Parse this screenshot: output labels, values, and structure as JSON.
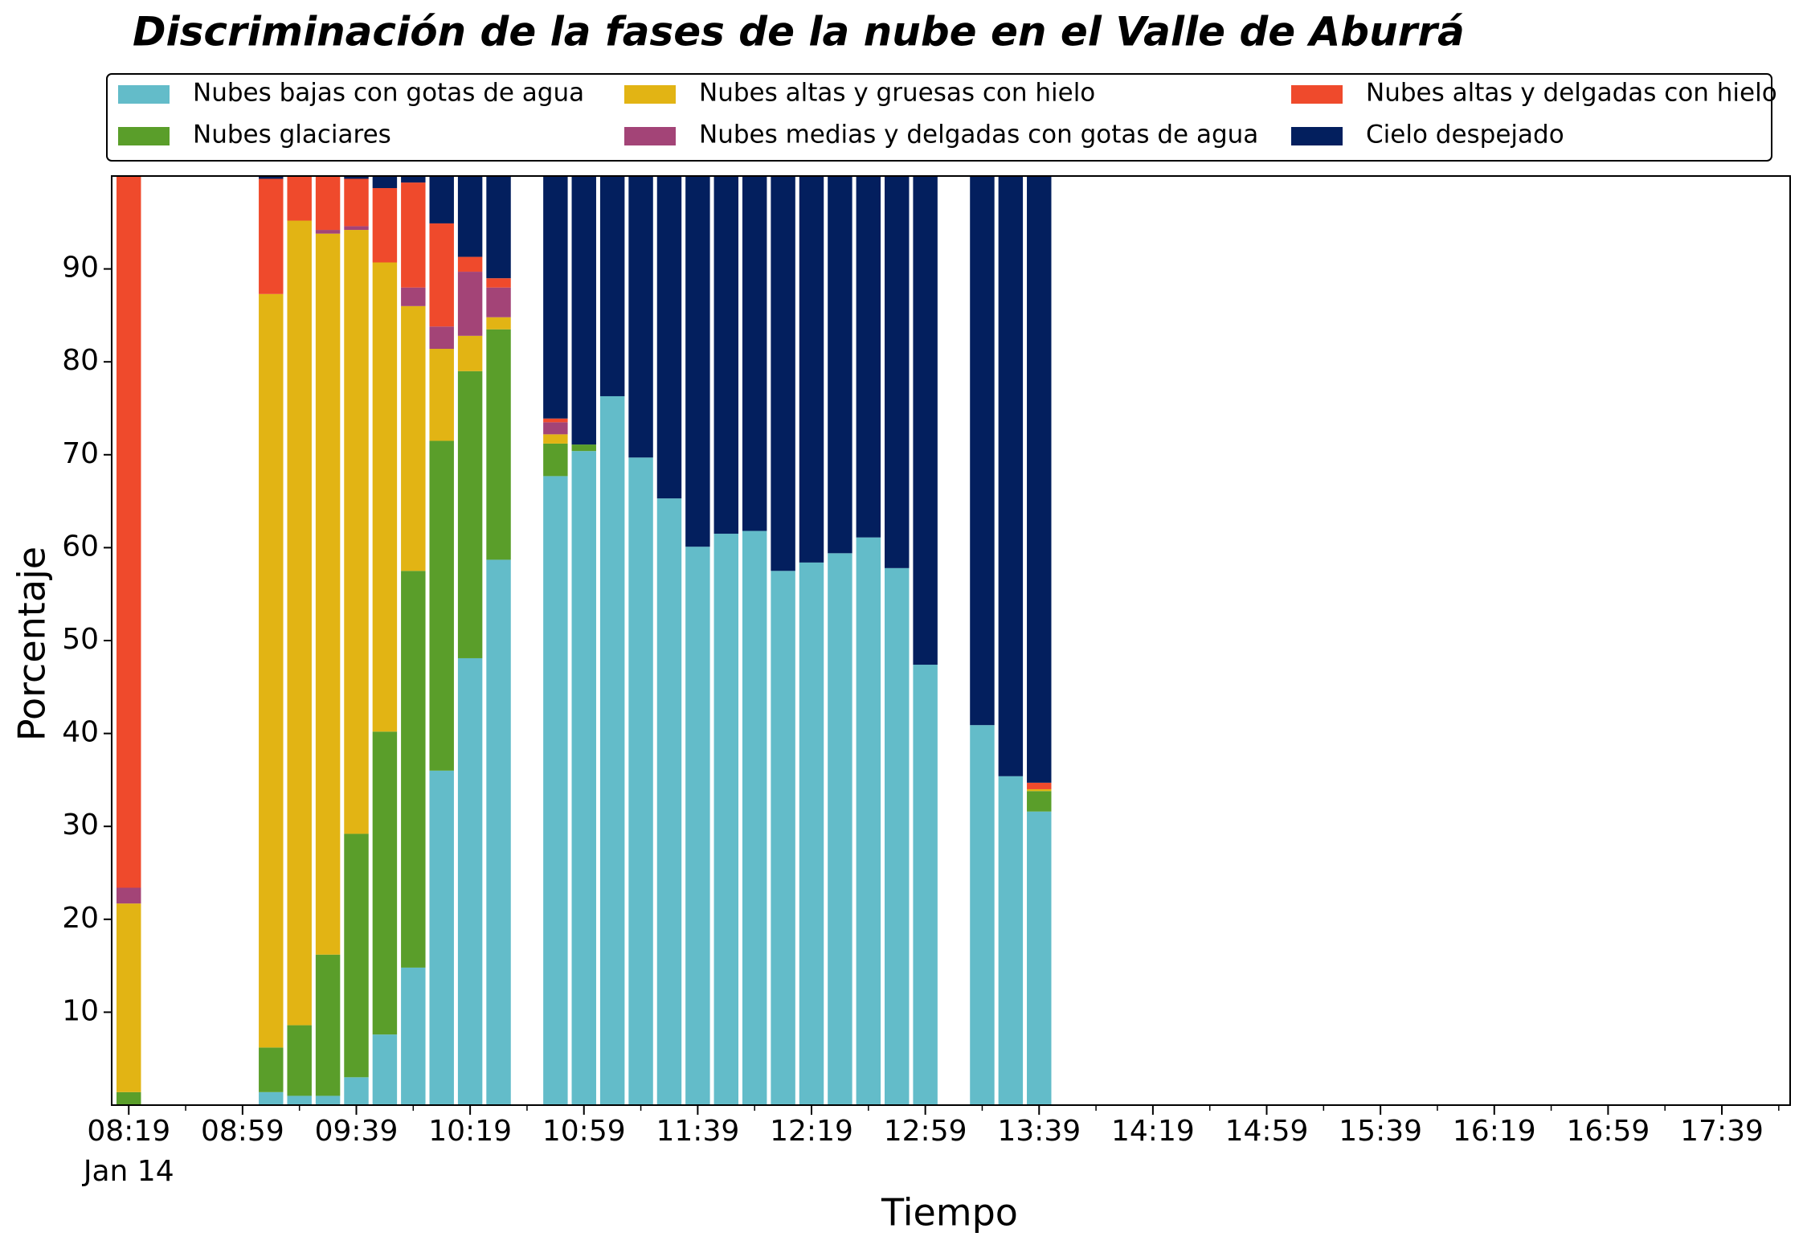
{
  "chart_data": {
    "type": "stacked_bar",
    "title": "Discriminación de la fases de la nube en el Valle de Aburrá",
    "xlabel": "Tiempo",
    "ylabel": "Porcentaje",
    "date_label": "Jan 14",
    "x": [
      "08:19",
      "09:09",
      "09:19",
      "09:29",
      "09:39",
      "09:49",
      "09:59",
      "10:09",
      "10:19",
      "10:29",
      "10:49",
      "10:59",
      "11:09",
      "11:19",
      "11:29",
      "11:39",
      "11:49",
      "11:59",
      "12:09",
      "12:19",
      "12:29",
      "12:39",
      "12:49",
      "12:59",
      "13:19",
      "13:29",
      "13:39"
    ],
    "series": [
      {
        "name": "Nubes bajas con gotas de agua",
        "color": "#63bcc9",
        "values": [
          0,
          1.4,
          1.0,
          1.0,
          3.0,
          7.6,
          14.8,
          36.0,
          48.1,
          58.7,
          67.7,
          70.4,
          76.3,
          69.7,
          65.3,
          60.1,
          61.5,
          61.8,
          57.5,
          58.4,
          59.4,
          61.1,
          57.8,
          47.4,
          40.9,
          35.4,
          31.6
        ]
      },
      {
        "name": "Nubes glaciares",
        "color": "#5a9e2a",
        "values": [
          1.4,
          4.8,
          7.6,
          15.2,
          26.2,
          32.6,
          42.7,
          35.5,
          30.9,
          24.8,
          3.5,
          0.7,
          0,
          0,
          0,
          0,
          0,
          0,
          0,
          0,
          0,
          0,
          0,
          0,
          0,
          0,
          2.2
        ]
      },
      {
        "name": "Nubes altas y gruesas con hielo",
        "color": "#e2b414",
        "values": [
          20.3,
          81.1,
          86.6,
          77.6,
          65.0,
          50.5,
          28.5,
          9.9,
          3.8,
          1.3,
          1.0,
          0,
          0,
          0,
          0,
          0,
          0,
          0,
          0,
          0,
          0,
          0,
          0,
          0,
          0,
          0,
          0.2
        ]
      },
      {
        "name": "Nubes medias y delgadas con gotas de agua",
        "color": "#a34477",
        "values": [
          1.7,
          0,
          0,
          0.4,
          0.4,
          0,
          2.0,
          2.4,
          6.9,
          3.2,
          1.3,
          0,
          0,
          0,
          0,
          0,
          0,
          0,
          0,
          0,
          0,
          0,
          0,
          0,
          0,
          0,
          0
        ]
      },
      {
        "name": "Nubes altas y delgadas con hielo",
        "color": "#ef4a2c",
        "values": [
          76.6,
          12.4,
          4.8,
          5.8,
          5.1,
          8.0,
          11.3,
          11.1,
          1.6,
          1.0,
          0.4,
          0,
          0,
          0,
          0,
          0,
          0,
          0,
          0,
          0,
          0,
          0,
          0,
          0,
          0,
          0,
          0.7
        ]
      },
      {
        "name": "Cielo despejado",
        "color": "#031f5e",
        "values": [
          0,
          0.3,
          0,
          0,
          0.3,
          1.3,
          0.7,
          5.1,
          8.7,
          11.0,
          26.1,
          28.9,
          23.7,
          30.3,
          34.7,
          39.9,
          38.5,
          38.2,
          42.5,
          41.6,
          40.6,
          38.9,
          42.2,
          52.6,
          59.1,
          64.6,
          65.3
        ]
      }
    ],
    "xlim": [
      "08:13",
      "18:03"
    ],
    "xticks": [
      "08:19",
      "08:59",
      "09:39",
      "10:19",
      "10:59",
      "11:39",
      "12:19",
      "12:59",
      "13:39",
      "14:19",
      "14:59",
      "15:39",
      "16:19",
      "16:59",
      "17:39"
    ],
    "ylim": [
      0,
      100
    ],
    "yticks": [
      10,
      20,
      30,
      40,
      50,
      60,
      70,
      80,
      90
    ],
    "legend": "top",
    "grid": false
  }
}
